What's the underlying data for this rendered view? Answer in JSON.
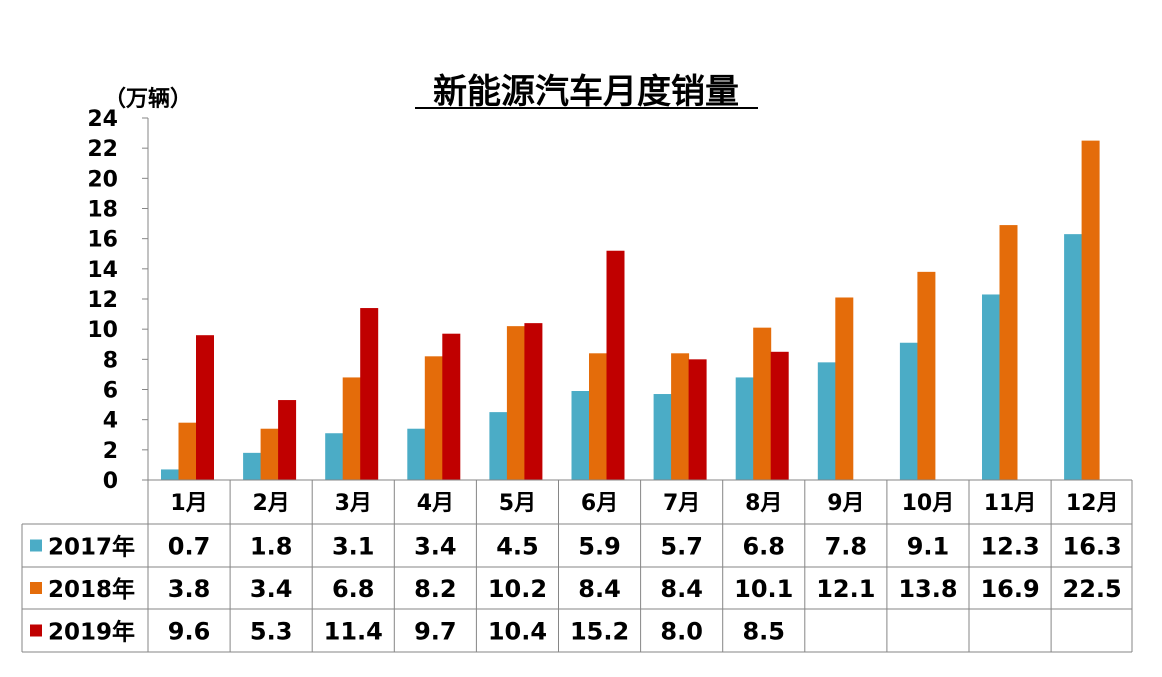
{
  "chart_data": {
    "type": "bar",
    "title": "新能源汽车月度销量",
    "unit_label": "（万辆）",
    "categories": [
      "1月",
      "2月",
      "3月",
      "4月",
      "5月",
      "6月",
      "7月",
      "8月",
      "9月",
      "10月",
      "11月",
      "12月"
    ],
    "ylim": [
      0,
      24
    ],
    "yticks": [
      0,
      2,
      4,
      6,
      8,
      10,
      12,
      14,
      16,
      18,
      20,
      22,
      24
    ],
    "grid": false,
    "legend": "data-table",
    "series": [
      {
        "name": "2017年",
        "color": "#4bacc6",
        "values": [
          0.7,
          1.8,
          3.1,
          3.4,
          4.5,
          5.9,
          5.7,
          6.8,
          7.8,
          9.1,
          12.3,
          16.3
        ],
        "labels": [
          "0.7",
          "1.8",
          "3.1",
          "3.4",
          "4.5",
          "5.9",
          "5.7",
          "6.8",
          "7.8",
          "9.1",
          "12.3",
          "16.3"
        ]
      },
      {
        "name": "2018年",
        "color": "#e46c0a",
        "values": [
          3.8,
          3.4,
          6.8,
          8.2,
          10.2,
          8.4,
          8.4,
          10.1,
          12.1,
          13.8,
          16.9,
          22.5
        ],
        "labels": [
          "3.8",
          "3.4",
          "6.8",
          "8.2",
          "10.2",
          "8.4",
          "8.4",
          "10.1",
          "12.1",
          "13.8",
          "16.9",
          "22.5"
        ]
      },
      {
        "name": "2019年",
        "color": "#c00000",
        "values": [
          9.6,
          5.3,
          11.4,
          9.7,
          10.4,
          15.2,
          8.0,
          8.5,
          null,
          null,
          null,
          null
        ],
        "labels": [
          "9.6",
          "5.3",
          "11.4",
          "9.7",
          "10.4",
          "15.2",
          "8.0",
          "8.5",
          "",
          "",
          "",
          ""
        ]
      }
    ]
  }
}
